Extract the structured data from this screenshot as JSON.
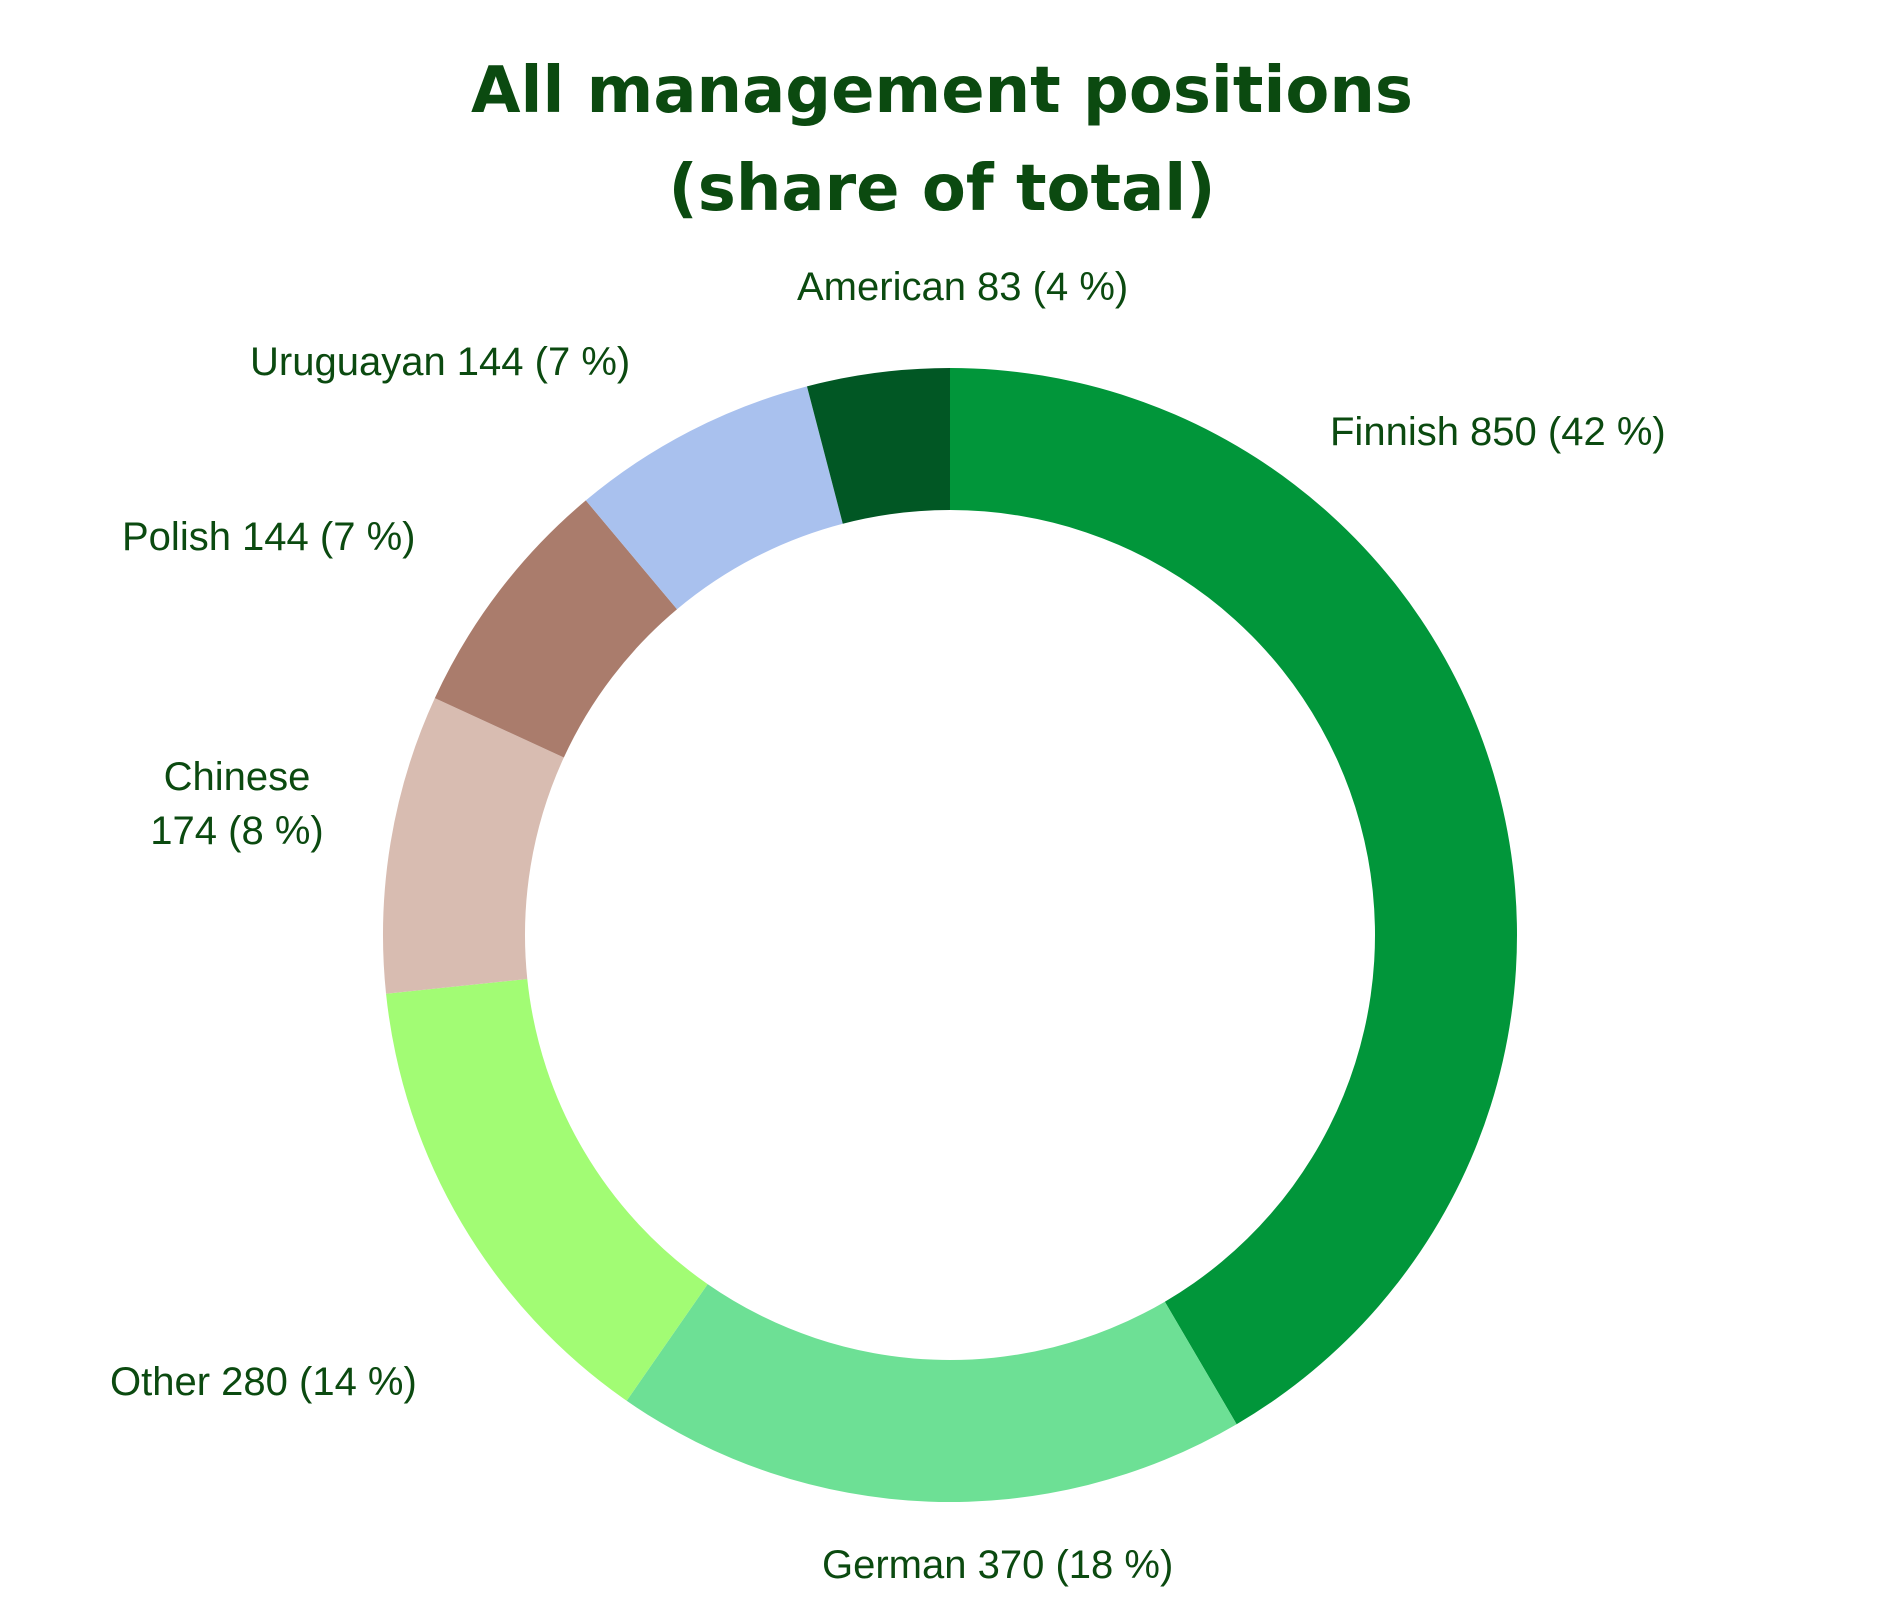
{
  "chart_data": {
    "type": "pie",
    "title_lines": [
      "All management positions",
      "(share of total)"
    ],
    "slices": [
      {
        "name": "Finnish",
        "value": 850,
        "color": "#01963a",
        "label_lines": [
          "Finnish 850 (42 %)"
        ]
      },
      {
        "name": "German",
        "value": 370,
        "color": "#6de095",
        "label_lines": [
          "German 370 (18 %)"
        ]
      },
      {
        "name": "Other",
        "value": 280,
        "color": "#a2fc74",
        "label_lines": [
          "Other 280 (14 %)"
        ]
      },
      {
        "name": "Chinese",
        "value": 174,
        "color": "#d8bcb1",
        "label_lines": [
          "Chinese",
          "174 (8 %)"
        ]
      },
      {
        "name": "Polish",
        "value": 144,
        "color": "#aa7c6c",
        "label_lines": [
          "Polish 144 (7 %)"
        ]
      },
      {
        "name": "Uruguayan",
        "value": 144,
        "color": "#a9c1ee",
        "label_lines": [
          "Uruguayan 144 (7 %)"
        ]
      },
      {
        "name": "American",
        "value": 83,
        "color": "#015724",
        "label_lines": [
          "American  83 (4 %)"
        ]
      }
    ],
    "donut": true,
    "start": "12 o'clock",
    "direction": "clockwise",
    "legend": "none"
  }
}
